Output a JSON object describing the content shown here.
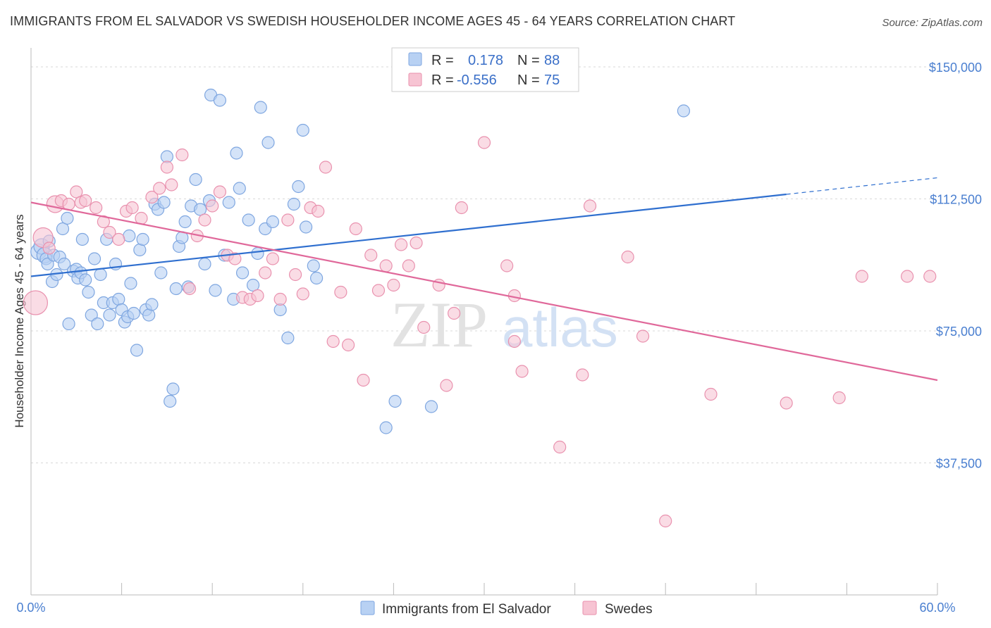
{
  "title": "IMMIGRANTS FROM EL SALVADOR VS SWEDISH HOUSEHOLDER INCOME AGES 45 - 64 YEARS CORRELATION CHART",
  "source": "Source: ZipAtlas.com",
  "watermark": {
    "zip": "ZIP",
    "atlas": "atlas"
  },
  "colors": {
    "blue_fill": "#b8d1f3",
    "blue_stroke": "#7ea6e0",
    "blue_line": "#2f6fcf",
    "pink_fill": "#f7c4d3",
    "pink_stroke": "#e991ae",
    "pink_line": "#e0689a",
    "tick_text": "#4a7fd0",
    "grid": "#d8d8d8"
  },
  "legend": {
    "r_label": "R =",
    "n_label": "N =",
    "rows": [
      {
        "r": "0.178",
        "n": "88",
        "series": "blue"
      },
      {
        "r": "-0.556",
        "n": "75",
        "series": "pink"
      }
    ]
  },
  "chart_data": {
    "type": "scatter",
    "title": "IMMIGRANTS FROM EL SALVADOR VS SWEDISH HOUSEHOLDER INCOME AGES 45 - 64 YEARS CORRELATION CHART",
    "xlabel": "",
    "ylabel": "Householder Income Ages 45 - 64 years",
    "xlim": [
      0,
      60
    ],
    "ylim": [
      0,
      155000
    ],
    "x_tick_labels": [
      "0.0%",
      "60.0%"
    ],
    "y_ticks": [
      37500,
      75000,
      112500,
      150000
    ],
    "y_tick_labels": [
      "$37,500",
      "$75,000",
      "$112,500",
      "$150,000"
    ],
    "grid": "horizontal dashed",
    "legend_placement": "bottom-center",
    "series": [
      {
        "name": "Immigrants from El Salvador",
        "color": "#b8d1f3",
        "trend": {
          "x": [
            0,
            50
          ],
          "y": [
            90500,
            113800
          ],
          "dashed_extension": {
            "x": [
              50,
              60
            ],
            "y": [
              113800,
              118500
            ]
          }
        },
        "points": [
          [
            0.5,
            97500
          ],
          [
            0.7,
            99000
          ],
          [
            0.9,
            96500
          ],
          [
            1.0,
            95500
          ],
          [
            1.2,
            100500
          ],
          [
            1.1,
            94000
          ],
          [
            1.4,
            89000
          ],
          [
            1.5,
            96500
          ],
          [
            1.7,
            91000
          ],
          [
            1.9,
            96000
          ],
          [
            2.1,
            104000
          ],
          [
            2.2,
            94000
          ],
          [
            2.4,
            107000
          ],
          [
            2.5,
            77000
          ],
          [
            2.8,
            92000
          ],
          [
            3.0,
            92500
          ],
          [
            3.1,
            90000
          ],
          [
            3.3,
            91500
          ],
          [
            3.4,
            101000
          ],
          [
            3.6,
            89500
          ],
          [
            3.8,
            86000
          ],
          [
            4.0,
            79500
          ],
          [
            4.2,
            95500
          ],
          [
            4.4,
            77000
          ],
          [
            4.6,
            91000
          ],
          [
            4.8,
            83000
          ],
          [
            5.0,
            101000
          ],
          [
            5.2,
            79500
          ],
          [
            5.4,
            83000
          ],
          [
            5.6,
            94000
          ],
          [
            5.8,
            84000
          ],
          [
            6.0,
            81000
          ],
          [
            6.2,
            77500
          ],
          [
            6.4,
            79000
          ],
          [
            6.5,
            102000
          ],
          [
            6.6,
            88500
          ],
          [
            6.8,
            80000
          ],
          [
            7.0,
            69500
          ],
          [
            7.2,
            98000
          ],
          [
            7.4,
            101000
          ],
          [
            7.6,
            81000
          ],
          [
            7.8,
            79500
          ],
          [
            8.0,
            82500
          ],
          [
            8.2,
            111000
          ],
          [
            8.4,
            109500
          ],
          [
            8.6,
            91500
          ],
          [
            8.8,
            111500
          ],
          [
            9.0,
            124500
          ],
          [
            9.2,
            55000
          ],
          [
            9.4,
            58500
          ],
          [
            9.6,
            87000
          ],
          [
            9.8,
            99000
          ],
          [
            10.0,
            101500
          ],
          [
            10.2,
            106000
          ],
          [
            10.4,
            87500
          ],
          [
            10.6,
            110500
          ],
          [
            10.9,
            118000
          ],
          [
            11.2,
            109500
          ],
          [
            11.5,
            94000
          ],
          [
            11.8,
            112000
          ],
          [
            11.9,
            142000
          ],
          [
            12.2,
            86500
          ],
          [
            12.5,
            140500
          ],
          [
            12.8,
            96500
          ],
          [
            13.1,
            111500
          ],
          [
            13.4,
            84000
          ],
          [
            13.6,
            125500
          ],
          [
            13.8,
            115500
          ],
          [
            14.0,
            91500
          ],
          [
            14.4,
            106500
          ],
          [
            14.7,
            88000
          ],
          [
            15.0,
            97000
          ],
          [
            15.2,
            138500
          ],
          [
            15.5,
            104000
          ],
          [
            15.7,
            128500
          ],
          [
            16.0,
            106000
          ],
          [
            16.5,
            81000
          ],
          [
            17.0,
            73000
          ],
          [
            17.4,
            111000
          ],
          [
            17.7,
            116000
          ],
          [
            18.0,
            132000
          ],
          [
            18.2,
            104500
          ],
          [
            18.7,
            93500
          ],
          [
            18.9,
            90000
          ],
          [
            24.1,
            55000
          ],
          [
            23.5,
            47500
          ],
          [
            26.5,
            53500
          ],
          [
            43.2,
            137500
          ]
        ]
      },
      {
        "name": "Swedes",
        "color": "#f7c4d3",
        "trend": {
          "x": [
            0,
            60
          ],
          "y": [
            111500,
            61000
          ]
        },
        "points": [
          [
            0.3,
            83000
          ],
          [
            0.8,
            101500
          ],
          [
            1.2,
            98500
          ],
          [
            1.6,
            111000
          ],
          [
            2.0,
            112000
          ],
          [
            2.5,
            111000
          ],
          [
            3.0,
            114500
          ],
          [
            3.3,
            111500
          ],
          [
            3.6,
            112000
          ],
          [
            4.3,
            110000
          ],
          [
            4.8,
            106000
          ],
          [
            5.2,
            103000
          ],
          [
            5.8,
            101000
          ],
          [
            6.3,
            109000
          ],
          [
            6.7,
            110000
          ],
          [
            7.3,
            107000
          ],
          [
            8.0,
            113000
          ],
          [
            8.5,
            115500
          ],
          [
            9.0,
            121500
          ],
          [
            9.3,
            116500
          ],
          [
            10.0,
            125000
          ],
          [
            10.5,
            87000
          ],
          [
            11.0,
            102000
          ],
          [
            11.5,
            106500
          ],
          [
            12.0,
            110500
          ],
          [
            12.5,
            114500
          ],
          [
            13.0,
            96500
          ],
          [
            13.5,
            95500
          ],
          [
            14.0,
            84500
          ],
          [
            14.5,
            84000
          ],
          [
            15.0,
            85000
          ],
          [
            15.5,
            91500
          ],
          [
            16.0,
            95500
          ],
          [
            16.5,
            84000
          ],
          [
            17.0,
            106500
          ],
          [
            17.5,
            91000
          ],
          [
            18.0,
            85500
          ],
          [
            18.5,
            110000
          ],
          [
            19.0,
            109000
          ],
          [
            19.5,
            121500
          ],
          [
            20.0,
            72000
          ],
          [
            20.5,
            86000
          ],
          [
            21.0,
            71000
          ],
          [
            21.5,
            104000
          ],
          [
            22.0,
            61000
          ],
          [
            22.5,
            96500
          ],
          [
            23.0,
            86500
          ],
          [
            23.5,
            93500
          ],
          [
            24.0,
            88000
          ],
          [
            24.5,
            99500
          ],
          [
            25.0,
            93500
          ],
          [
            25.5,
            100000
          ],
          [
            26.0,
            76000
          ],
          [
            26.5,
            147000
          ],
          [
            27.0,
            88000
          ],
          [
            27.5,
            59500
          ],
          [
            28.0,
            80000
          ],
          [
            28.5,
            110000
          ],
          [
            30.0,
            128500
          ],
          [
            31.5,
            93500
          ],
          [
            32.0,
            85000
          ],
          [
            32.0,
            72000
          ],
          [
            32.5,
            63500
          ],
          [
            35.0,
            42000
          ],
          [
            36.5,
            62500
          ],
          [
            37.0,
            110500
          ],
          [
            39.5,
            96000
          ],
          [
            40.5,
            73500
          ],
          [
            42.0,
            21000
          ],
          [
            45.0,
            57000
          ],
          [
            50.0,
            54500
          ],
          [
            53.5,
            56000
          ],
          [
            55.0,
            90500
          ],
          [
            58.0,
            90500
          ],
          [
            59.5,
            90500
          ]
        ]
      }
    ]
  }
}
